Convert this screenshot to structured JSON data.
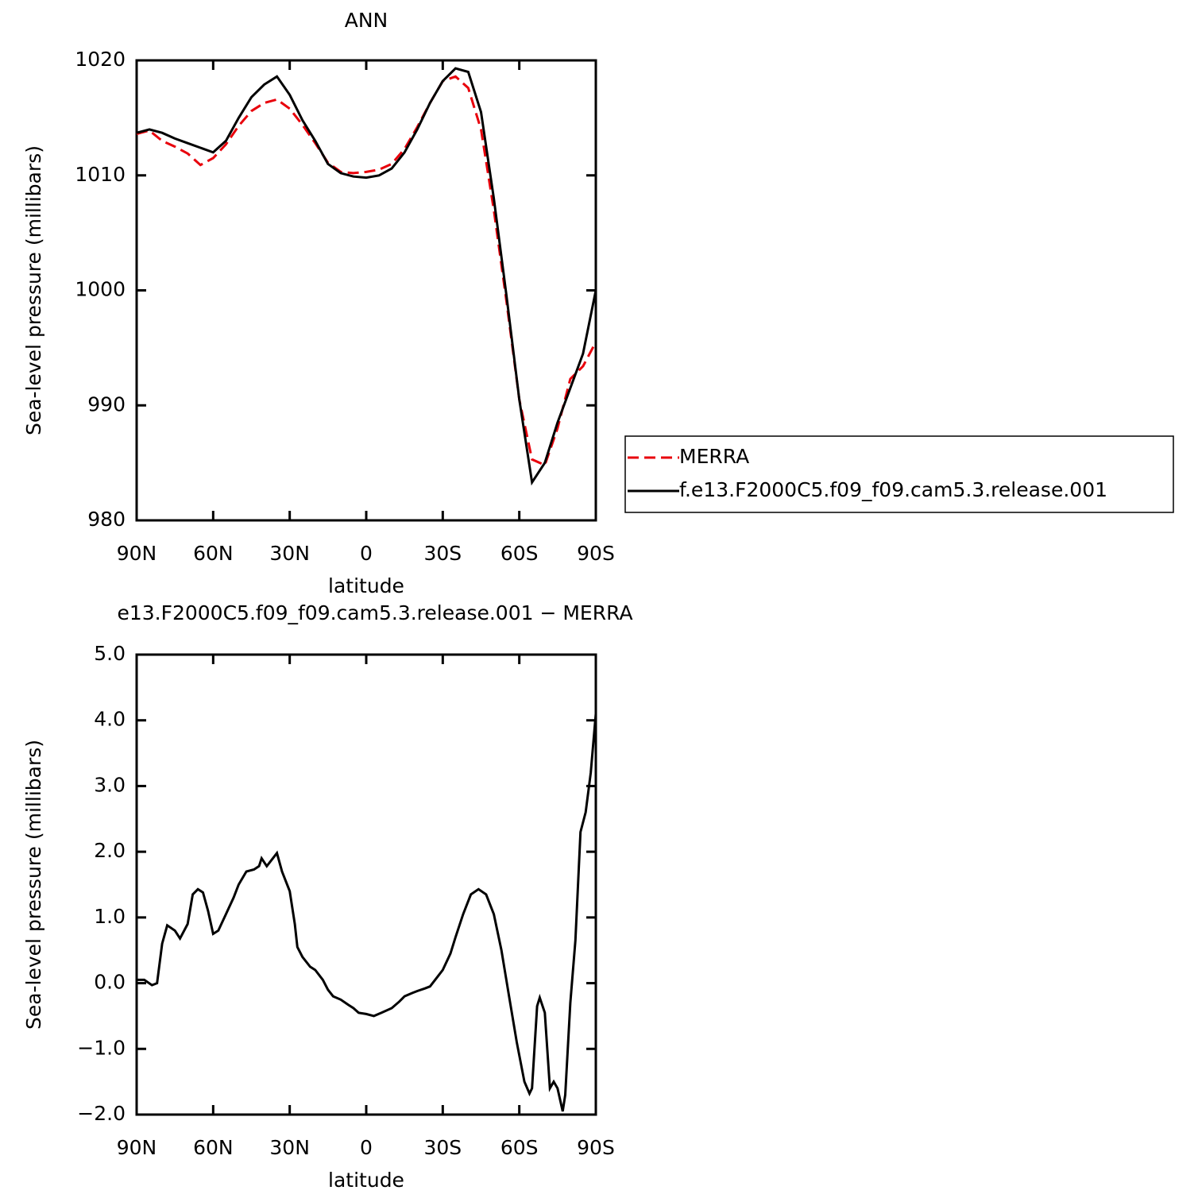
{
  "chart_data": [
    {
      "type": "line",
      "title": "ANN",
      "x_label": "latitude",
      "y_label": "Sea-level pressure (millibars)",
      "xlim": [
        90,
        -90
      ],
      "ylim": [
        980,
        1020
      ],
      "xticks": [
        {
          "value": 90,
          "label": "90N"
        },
        {
          "value": 60,
          "label": "60N"
        },
        {
          "value": 30,
          "label": "30N"
        },
        0,
        {
          "value": -30,
          "label": "30S"
        },
        {
          "value": -60,
          "label": "60S"
        },
        {
          "value": -90,
          "label": "90S"
        }
      ],
      "yticks": [
        980,
        990,
        1000,
        1010,
        1020
      ],
      "x": [
        90,
        85,
        80,
        75,
        70,
        65,
        60,
        55,
        50,
        45,
        40,
        35,
        30,
        25,
        20,
        15,
        10,
        5,
        0,
        -5,
        -10,
        -15,
        -20,
        -25,
        -30,
        -35,
        -40,
        -45,
        -50,
        -55,
        -60,
        -65,
        -70,
        -75,
        -80,
        -85,
        -90
      ],
      "series": [
        {
          "name": "MERRA",
          "color": "#e8000b",
          "line_style": "dashed",
          "values": [
            1013.6,
            1013.9,
            1013.0,
            1012.5,
            1011.9,
            1010.9,
            1011.5,
            1012.7,
            1014.3,
            1015.6,
            1016.3,
            1016.6,
            1015.8,
            1014.4,
            1012.8,
            1011.1,
            1010.3,
            1010.2,
            1010.3,
            1010.5,
            1011.0,
            1012.3,
            1014.2,
            1016.3,
            1018.2,
            1018.6,
            1017.6,
            1014.0,
            1007.0,
            999.0,
            990.5,
            985.3,
            984.8,
            988.0,
            992.3,
            993.4,
            995.5
          ]
        },
        {
          "name": "f.e13.F2000C5.f09_f09.cam5.3.release.001",
          "color": "#000000",
          "line_style": "solid",
          "values": [
            1013.7,
            1014.0,
            1013.7,
            1013.2,
            1012.8,
            1012.4,
            1012.0,
            1013.0,
            1015.0,
            1016.8,
            1017.9,
            1018.6,
            1017.0,
            1014.8,
            1013.0,
            1011.0,
            1010.2,
            1009.9,
            1009.8,
            1010.0,
            1010.6,
            1012.0,
            1014.0,
            1016.3,
            1018.2,
            1019.3,
            1019.0,
            1015.5,
            1008.0,
            999.5,
            990.5,
            983.3,
            985.0,
            988.5,
            991.5,
            994.5,
            1000.0
          ]
        }
      ]
    },
    {
      "type": "line",
      "title": "e13.F2000C5.f09_f09.cam5.3.release.001 − MERRA",
      "x_label": "latitude",
      "y_label": "Sea-level pressure (millibars)",
      "xlim": [
        90,
        -90
      ],
      "ylim": [
        -2,
        5
      ],
      "xticks": [
        {
          "value": 90,
          "label": "90N"
        },
        {
          "value": 60,
          "label": "60N"
        },
        {
          "value": 30,
          "label": "30N"
        },
        0,
        {
          "value": -30,
          "label": "30S"
        },
        {
          "value": -60,
          "label": "60S"
        },
        {
          "value": -90,
          "label": "90S"
        }
      ],
      "yticks": [
        {
          "value": -2,
          "label": "−2.0"
        },
        {
          "value": -1,
          "label": "−1.0"
        },
        {
          "value": 0,
          "label": "0.0"
        },
        {
          "value": 1,
          "label": "1.0"
        },
        {
          "value": 2,
          "label": "2.0"
        },
        {
          "value": 3,
          "label": "3.0"
        },
        {
          "value": 4,
          "label": "4.0"
        },
        {
          "value": 5,
          "label": "5.0"
        }
      ],
      "x": [
        90,
        87,
        84,
        82,
        80,
        78,
        75,
        73,
        70,
        68,
        66,
        64,
        62,
        60,
        58,
        55,
        52,
        50,
        47,
        44,
        42,
        41,
        39,
        37,
        35,
        33,
        30,
        28,
        27,
        25,
        22,
        20,
        17,
        15,
        13,
        10,
        7,
        5,
        3,
        0,
        -3,
        -6,
        -10,
        -13,
        -15,
        -18,
        -20,
        -23,
        -25,
        -28,
        -30,
        -33,
        -35,
        -38,
        -41,
        -44,
        -47,
        -50,
        -53,
        -56,
        -59,
        -62,
        -64,
        -65,
        -67,
        -68,
        -70,
        -72,
        -73.5,
        -75,
        -77,
        -78,
        -80,
        -82,
        -84,
        -86,
        -88,
        -90
      ],
      "series": [
        {
          "color": "#000000",
          "line_style": "solid",
          "values": [
            0.05,
            0.05,
            -0.03,
            0.0,
            0.6,
            0.88,
            0.8,
            0.68,
            0.9,
            1.35,
            1.43,
            1.38,
            1.1,
            0.75,
            0.8,
            1.05,
            1.3,
            1.5,
            1.7,
            1.73,
            1.78,
            1.9,
            1.78,
            1.88,
            1.98,
            1.7,
            1.4,
            0.9,
            0.55,
            0.4,
            0.25,
            0.2,
            0.05,
            -0.1,
            -0.2,
            -0.25,
            -0.33,
            -0.38,
            -0.45,
            -0.47,
            -0.5,
            -0.45,
            -0.38,
            -0.28,
            -0.2,
            -0.15,
            -0.12,
            -0.08,
            -0.05,
            0.1,
            0.2,
            0.45,
            0.7,
            1.05,
            1.35,
            1.43,
            1.35,
            1.05,
            0.5,
            -0.2,
            -0.9,
            -1.5,
            -1.68,
            -1.6,
            -0.35,
            -0.22,
            -0.45,
            -1.6,
            -1.5,
            -1.6,
            -1.95,
            -1.7,
            -0.3,
            0.65,
            2.3,
            2.6,
            3.2,
            4.1
          ]
        }
      ]
    }
  ]
}
